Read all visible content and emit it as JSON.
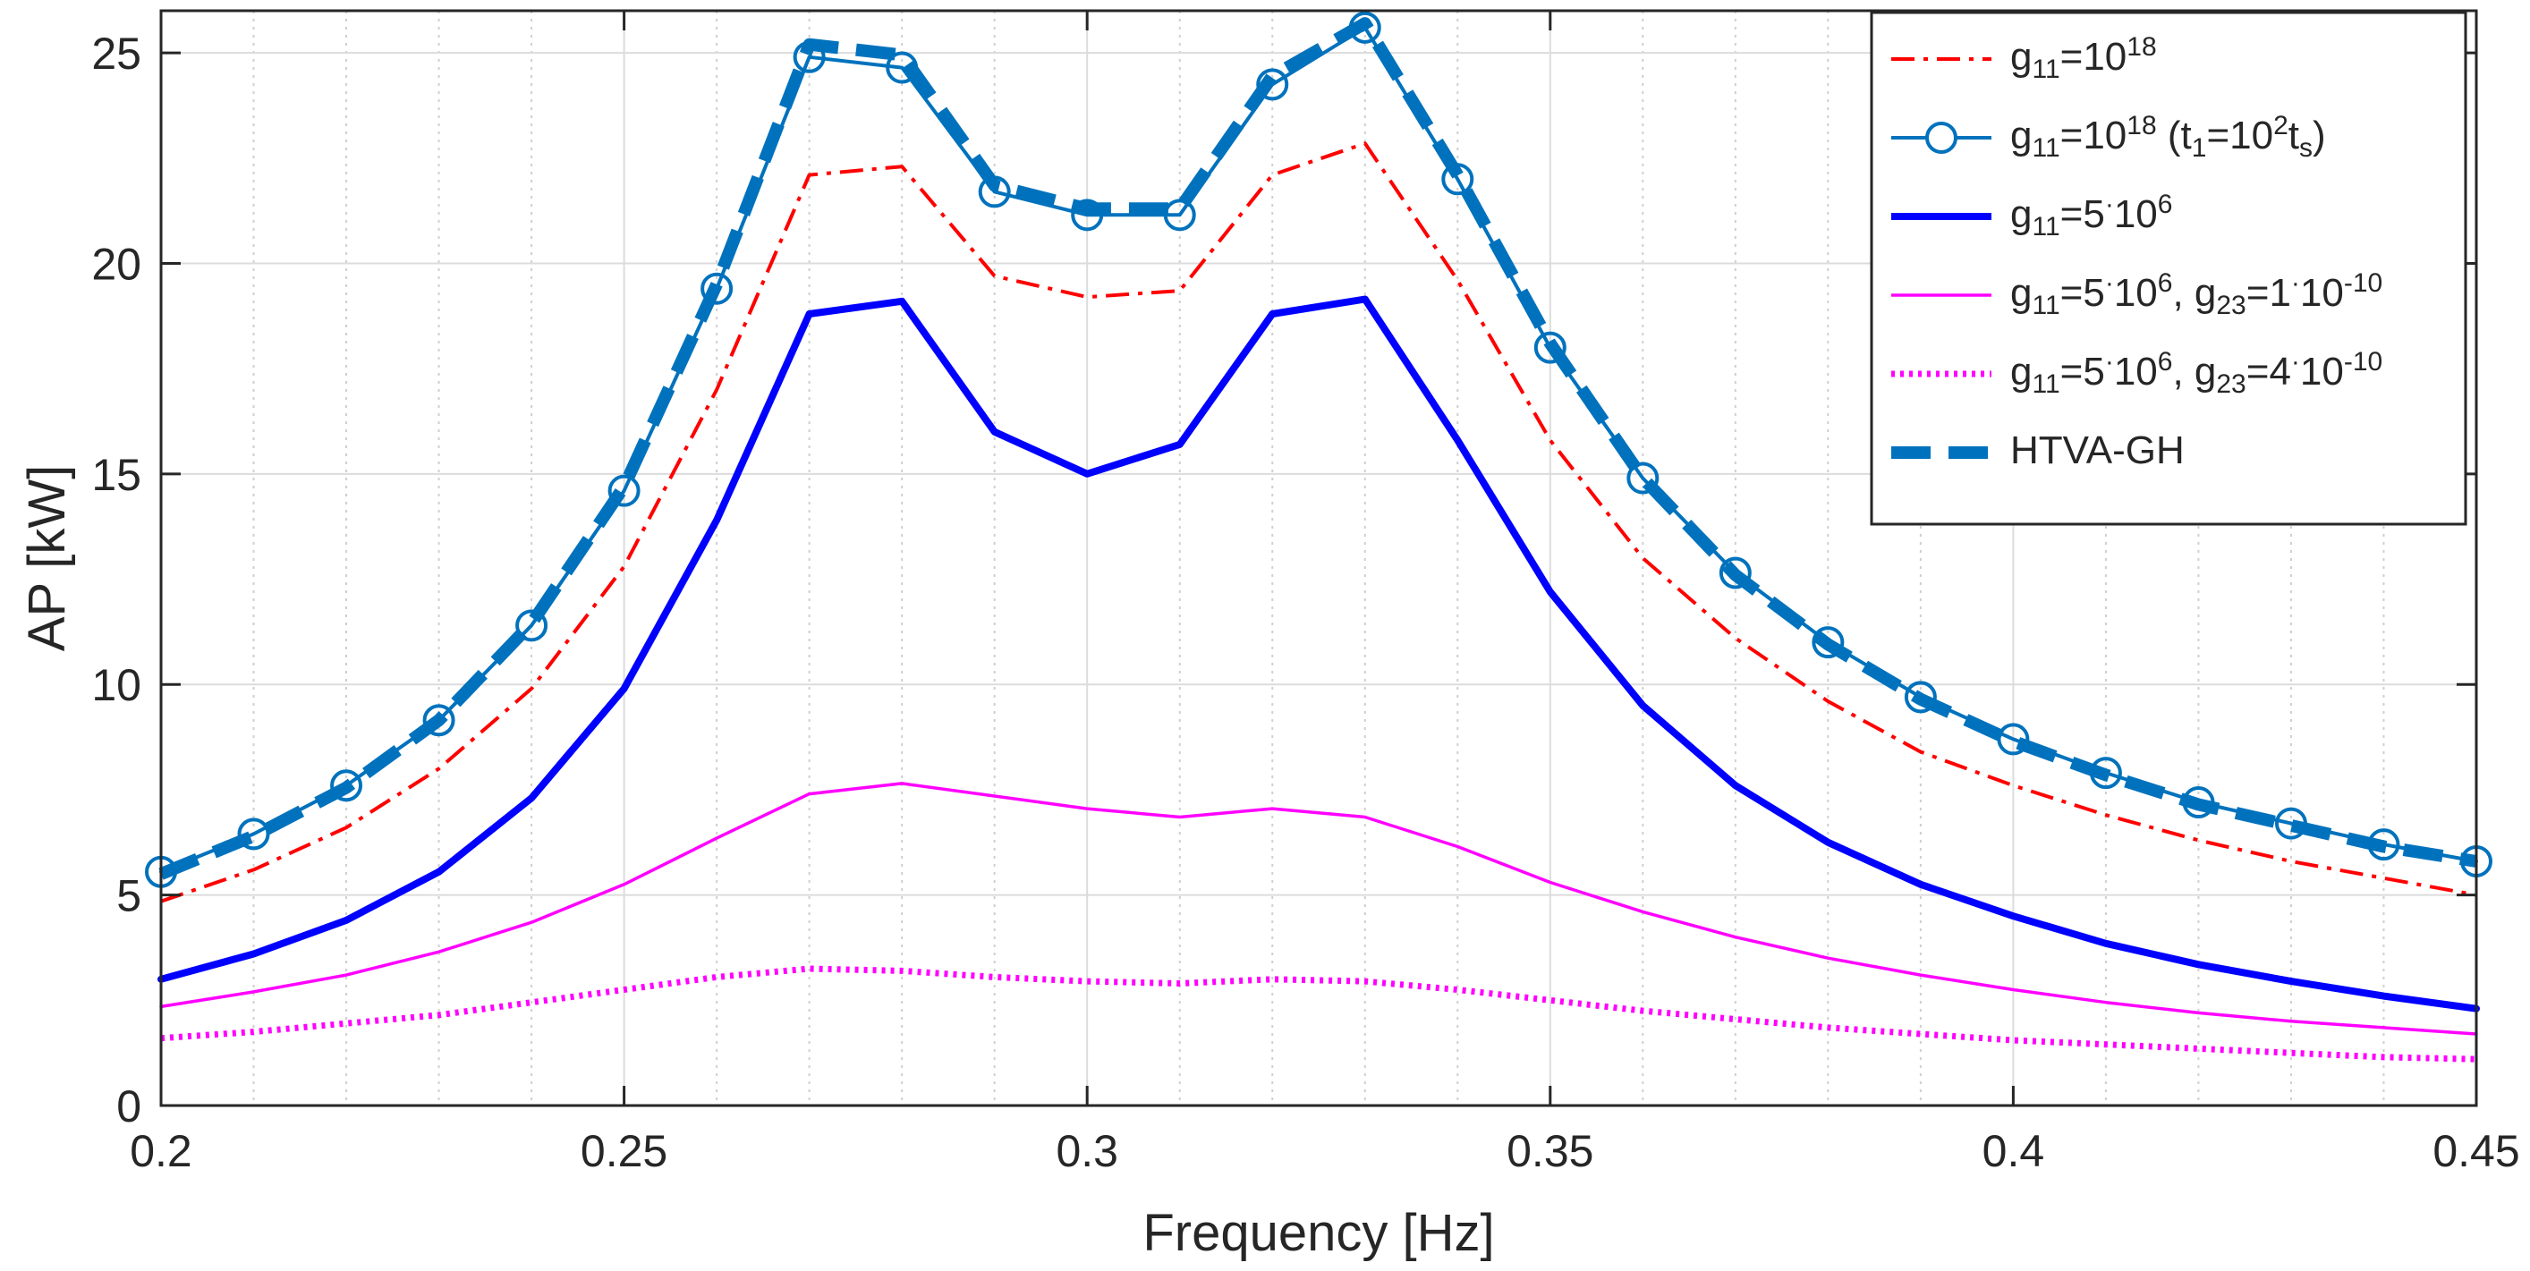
{
  "chart_data": {
    "type": "line",
    "xlabel": "Frequency [Hz]",
    "ylabel": "AP [kW]",
    "xlim": [
      0.2,
      0.45
    ],
    "ylim": [
      0,
      26
    ],
    "xticks": [
      0.2,
      0.25,
      0.3,
      0.35,
      0.4,
      0.45
    ],
    "xtick_labels": [
      "0.2",
      "0.25",
      "0.3",
      "0.35",
      "0.4",
      "0.45"
    ],
    "yticks": [
      0,
      5,
      10,
      15,
      20,
      25
    ],
    "ytick_labels": [
      "0",
      "5",
      "10",
      "15",
      "20",
      "25"
    ],
    "x_minor_grid": [
      0.21,
      0.22,
      0.23,
      0.24,
      0.26,
      0.27,
      0.28,
      0.29,
      0.31,
      0.32,
      0.33,
      0.34,
      0.36,
      0.37,
      0.38,
      0.39,
      0.41,
      0.42,
      0.43,
      0.44
    ],
    "grid": true,
    "legend_position": "top-right",
    "x": [
      0.2,
      0.21,
      0.22,
      0.23,
      0.24,
      0.25,
      0.26,
      0.27,
      0.28,
      0.29,
      0.3,
      0.31,
      0.32,
      0.33,
      0.34,
      0.35,
      0.36,
      0.37,
      0.38,
      0.39,
      0.4,
      0.41,
      0.42,
      0.43,
      0.44,
      0.45
    ],
    "series": [
      {
        "name": "g11=10^18",
        "legend": [
          {
            "t": "g"
          },
          {
            "t": "11",
            "s": "sub"
          },
          {
            "t": "=10"
          },
          {
            "t": "18",
            "s": "sup"
          }
        ],
        "color": "#ff0000",
        "style": "dashdot",
        "values": [
          4.85,
          5.6,
          6.6,
          8.0,
          9.9,
          12.8,
          17.0,
          22.1,
          22.3,
          19.7,
          19.2,
          19.35,
          22.1,
          22.85,
          19.6,
          15.8,
          13.0,
          11.1,
          9.6,
          8.4,
          7.6,
          6.9,
          6.3,
          5.8,
          5.4,
          5.0
        ]
      },
      {
        "name": "g11=10^18 (t1=10^2 ts)",
        "legend": [
          {
            "t": "g"
          },
          {
            "t": "11",
            "s": "sub"
          },
          {
            "t": "=10"
          },
          {
            "t": "18",
            "s": "sup"
          },
          {
            "t": " (t"
          },
          {
            "t": "1",
            "s": "sub"
          },
          {
            "t": "=10"
          },
          {
            "t": "2",
            "s": "sup"
          },
          {
            "t": "t"
          },
          {
            "t": "s",
            "s": "sub"
          },
          {
            "t": ")"
          }
        ],
        "color": "#0072bd",
        "style": "solid-circle",
        "values": [
          5.55,
          6.45,
          7.6,
          9.15,
          11.4,
          14.6,
          19.4,
          24.9,
          24.65,
          21.7,
          21.15,
          21.15,
          24.25,
          25.6,
          22.0,
          18.0,
          14.9,
          12.65,
          11.0,
          9.7,
          8.7,
          7.9,
          7.2,
          6.7,
          6.2,
          5.8
        ]
      },
      {
        "name": "g11=5·10^6",
        "legend": [
          {
            "t": "g"
          },
          {
            "t": "11",
            "s": "sub"
          },
          {
            "t": "=5"
          },
          {
            "t": "·",
            "s": "sup"
          },
          {
            "t": "10"
          },
          {
            "t": "6",
            "s": "sup"
          }
        ],
        "color": "#0000ff",
        "style": "thick",
        "values": [
          3.0,
          3.6,
          4.4,
          5.55,
          7.3,
          9.9,
          13.9,
          18.8,
          19.1,
          16.0,
          15.0,
          15.7,
          18.8,
          19.15,
          15.8,
          12.2,
          9.5,
          7.6,
          6.25,
          5.25,
          4.5,
          3.85,
          3.35,
          2.95,
          2.6,
          2.3
        ]
      },
      {
        "name": "g11=5·10^6, g23=1·10^-10",
        "legend": [
          {
            "t": "g"
          },
          {
            "t": "11",
            "s": "sub"
          },
          {
            "t": "=5"
          },
          {
            "t": "·",
            "s": "sup"
          },
          {
            "t": "10"
          },
          {
            "t": "6",
            "s": "sup"
          },
          {
            "t": ", g"
          },
          {
            "t": "23",
            "s": "sub"
          },
          {
            "t": "=1"
          },
          {
            "t": "·",
            "s": "sup"
          },
          {
            "t": "10"
          },
          {
            "t": "-10",
            "s": "sup"
          }
        ],
        "color": "#ff00ff",
        "style": "thin",
        "values": [
          2.35,
          2.7,
          3.1,
          3.65,
          4.35,
          5.25,
          6.35,
          7.4,
          7.65,
          7.35,
          7.05,
          6.85,
          7.05,
          6.85,
          6.15,
          5.3,
          4.6,
          4.0,
          3.5,
          3.1,
          2.75,
          2.45,
          2.2,
          2.0,
          1.85,
          1.7
        ]
      },
      {
        "name": "g11=5·10^6, g23=4·10^-10",
        "legend": [
          {
            "t": "g"
          },
          {
            "t": "11",
            "s": "sub"
          },
          {
            "t": "=5"
          },
          {
            "t": "·",
            "s": "sup"
          },
          {
            "t": "10"
          },
          {
            "t": "6",
            "s": "sup"
          },
          {
            "t": ", g"
          },
          {
            "t": "23",
            "s": "sub"
          },
          {
            "t": "=4"
          },
          {
            "t": "·",
            "s": "sup"
          },
          {
            "t": "10"
          },
          {
            "t": "-10",
            "s": "sup"
          }
        ],
        "color": "#ff00ff",
        "style": "dotted",
        "values": [
          1.6,
          1.75,
          1.95,
          2.15,
          2.45,
          2.75,
          3.05,
          3.25,
          3.2,
          3.05,
          2.95,
          2.9,
          3.0,
          2.95,
          2.75,
          2.5,
          2.25,
          2.05,
          1.85,
          1.7,
          1.55,
          1.45,
          1.35,
          1.25,
          1.15,
          1.1
        ]
      },
      {
        "name": "HTVA-GH",
        "legend": [
          {
            "t": "HTVA-GH"
          }
        ],
        "color": "#0072bd",
        "style": "thick-dashed",
        "values": [
          5.5,
          6.4,
          7.55,
          9.15,
          11.45,
          14.7,
          19.5,
          25.2,
          24.95,
          21.85,
          21.3,
          21.3,
          24.45,
          25.7,
          22.1,
          18.1,
          14.9,
          12.6,
          10.95,
          9.65,
          8.65,
          7.85,
          7.15,
          6.65,
          6.15,
          5.8
        ]
      }
    ]
  }
}
